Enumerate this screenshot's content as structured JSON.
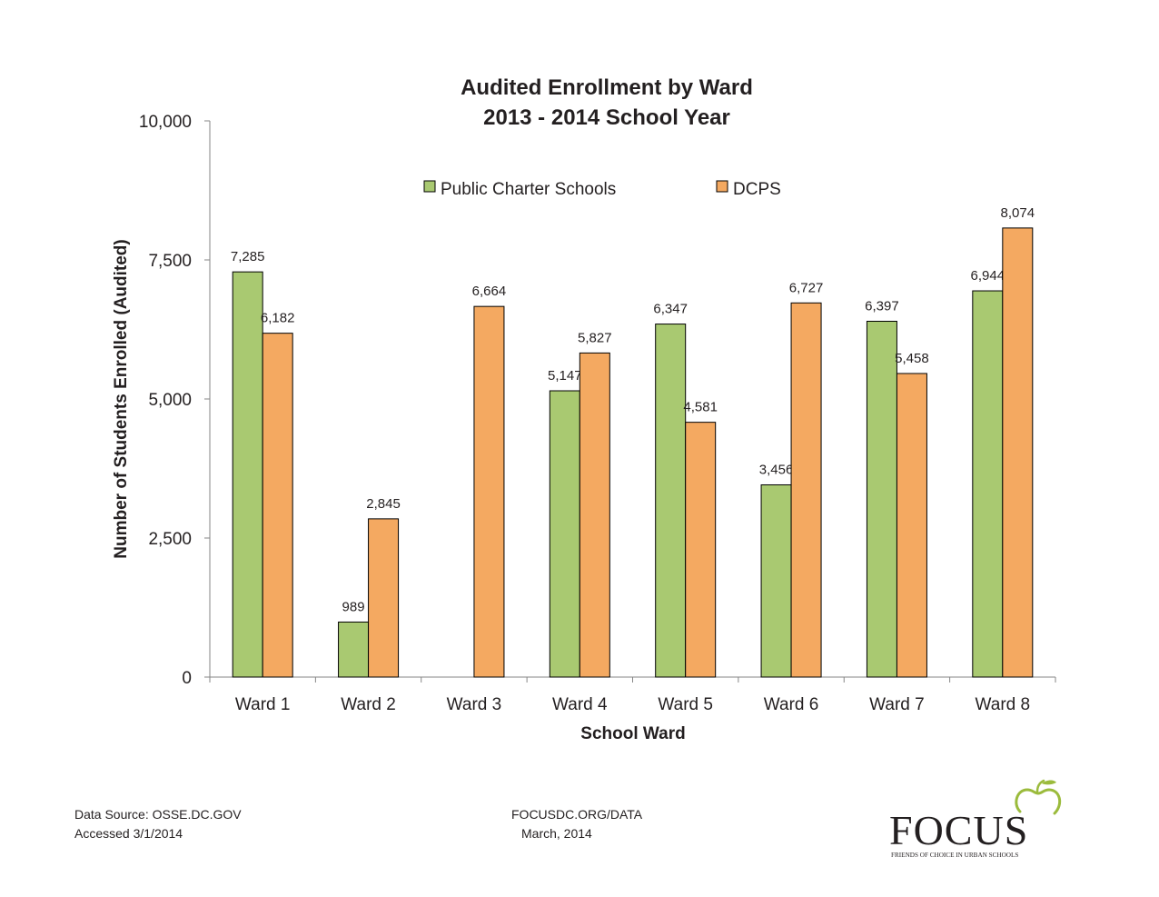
{
  "chart_data": {
    "type": "bar",
    "title_line1": "Audited Enrollment by Ward",
    "title_line2": "2013 - 2014 School Year",
    "xlabel": "School Ward",
    "ylabel": "Number of Students Enrolled (Audited)",
    "ylim": [
      0,
      10000
    ],
    "yticks": [
      0,
      2500,
      5000,
      7500,
      10000
    ],
    "ytick_labels": [
      "0",
      "2,500",
      "5,000",
      "7,500",
      "10,000"
    ],
    "categories": [
      "Ward 1",
      "Ward 2",
      "Ward 3",
      "Ward 4",
      "Ward 5",
      "Ward 6",
      "Ward 7",
      "Ward 8"
    ],
    "series": [
      {
        "name": "Public Charter Schools",
        "color": "#a9c971",
        "values": [
          7285,
          989,
          0,
          5147,
          6347,
          3456,
          6397,
          6944
        ],
        "labels": [
          "7,285",
          "989",
          "",
          "5,147",
          "6,347",
          "3,456",
          "6,397",
          "6,944"
        ]
      },
      {
        "name": "DCPS",
        "color": "#f4a961",
        "values": [
          6182,
          2845,
          6664,
          5827,
          4581,
          6727,
          5458,
          8074
        ],
        "labels": [
          "6,182",
          "2,845",
          "6,664",
          "5,827",
          "4,581",
          "6,727",
          "5,458",
          "8,074"
        ]
      }
    ],
    "grid": false,
    "legend_position": "top-center"
  },
  "footer": {
    "source_line1": "Data Source: OSSE.DC.GOV",
    "source_line2": "Accessed 3/1/2014",
    "site_line1": "FOCUSDC.ORG/DATA",
    "site_line2": "March, 2014"
  },
  "logo": {
    "name": "FOCUS",
    "tagline": "FRIENDS OF CHOICE IN URBAN SCHOOLS",
    "color": "#231f20",
    "apple_color": "#9bbb3c"
  }
}
